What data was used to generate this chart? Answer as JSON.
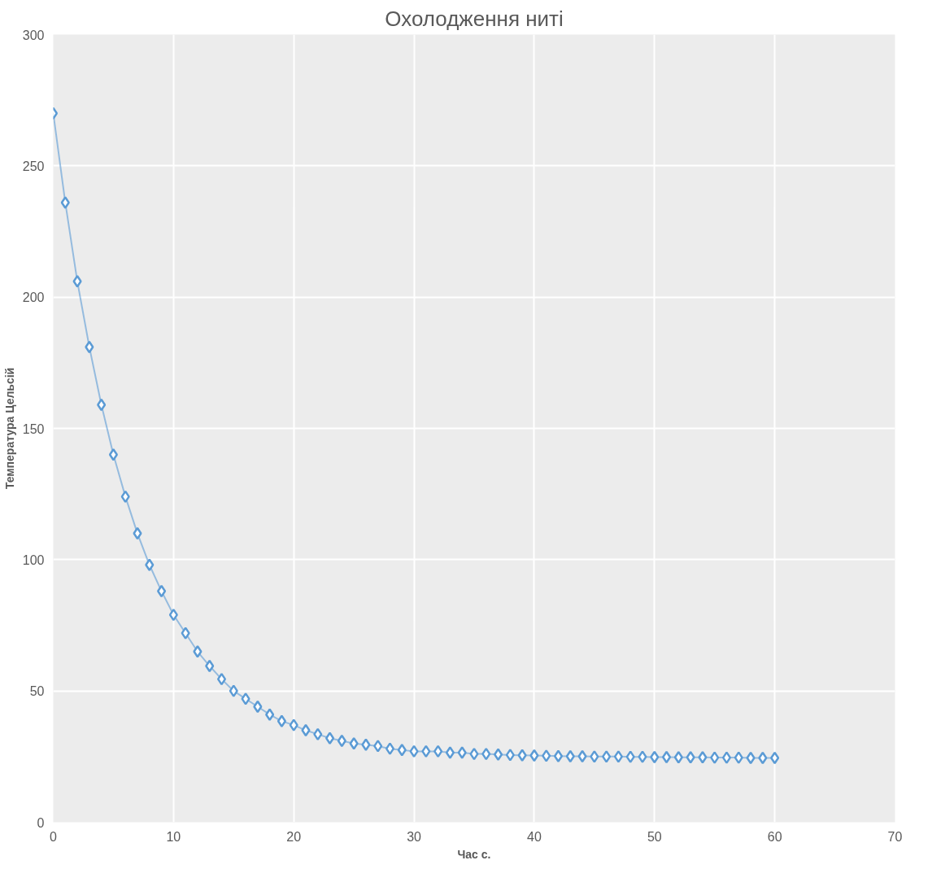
{
  "chart_data": {
    "type": "line",
    "title": "Охолодження ниті",
    "xlabel": "Час с.",
    "ylabel": "Температура Цельсій",
    "xlim": [
      0,
      70
    ],
    "xticks": [
      0,
      10,
      20,
      30,
      40,
      50,
      60,
      70
    ],
    "ylim": [
      0,
      300
    ],
    "yticks": [
      0,
      50,
      100,
      150,
      200,
      250,
      300
    ],
    "grid": true,
    "marker": "diamond",
    "line_style": "solid",
    "x": [
      0,
      1,
      2,
      3,
      4,
      5,
      6,
      7,
      8,
      9,
      10,
      11,
      12,
      13,
      14,
      15,
      16,
      17,
      18,
      19,
      20,
      21,
      22,
      23,
      24,
      25,
      26,
      27,
      28,
      29,
      30,
      31,
      32,
      33,
      34,
      35,
      36,
      37,
      38,
      39,
      40,
      41,
      42,
      43,
      44,
      45,
      46,
      47,
      48,
      49,
      50,
      51,
      52,
      53,
      54,
      55,
      56,
      57,
      58,
      59,
      60
    ],
    "series": [
      {
        "color": "#5b9bd5",
        "values": [
          270,
          236,
          206,
          181,
          159,
          140,
          124,
          110,
          98,
          88,
          79,
          72,
          65,
          59.5,
          54.5,
          50,
          47,
          44,
          41,
          38.5,
          37,
          35,
          33.5,
          32,
          31,
          30,
          29.5,
          29,
          28,
          27.5,
          27,
          27,
          27,
          26.5,
          26.5,
          26,
          26,
          25.8,
          25.6,
          25.5,
          25.4,
          25.3,
          25.2,
          25.1,
          25.1,
          25,
          25,
          25,
          24.9,
          24.9,
          24.8,
          24.8,
          24.7,
          24.7,
          24.7,
          24.6,
          24.6,
          24.6,
          24.5,
          24.5,
          24.5
        ]
      }
    ]
  }
}
